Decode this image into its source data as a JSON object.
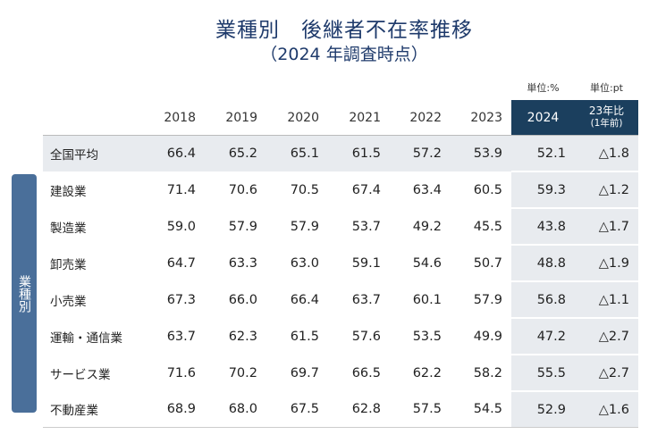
{
  "title": "業種別　後継者不在率推移",
  "subtitle": "（2024 年調査時点）",
  "units": {
    "pct": "単位:%",
    "pt": "単位:pt"
  },
  "side_label": "業種別",
  "columns": [
    "2018",
    "2019",
    "2020",
    "2021",
    "2022",
    "2023",
    "2024"
  ],
  "change_header": {
    "line1": "23年比",
    "line2": "(1年前)"
  },
  "rows": [
    {
      "label": "全国平均",
      "values": [
        "66.4",
        "65.2",
        "65.1",
        "61.5",
        "57.2",
        "53.9",
        "52.1"
      ],
      "change": "△1.8"
    },
    {
      "label": "建設業",
      "values": [
        "71.4",
        "70.6",
        "70.5",
        "67.4",
        "63.4",
        "60.5",
        "59.3"
      ],
      "change": "△1.2"
    },
    {
      "label": "製造業",
      "values": [
        "59.0",
        "57.9",
        "57.9",
        "53.7",
        "49.2",
        "45.5",
        "43.8"
      ],
      "change": "△1.7"
    },
    {
      "label": "卸売業",
      "values": [
        "64.7",
        "63.3",
        "63.0",
        "59.1",
        "54.6",
        "50.7",
        "48.8"
      ],
      "change": "△1.9"
    },
    {
      "label": "小売業",
      "values": [
        "67.3",
        "66.0",
        "66.4",
        "63.7",
        "60.1",
        "57.9",
        "56.8"
      ],
      "change": "△1.1"
    },
    {
      "label": "運輸・通信業",
      "values": [
        "63.7",
        "62.3",
        "61.5",
        "57.6",
        "53.5",
        "49.9",
        "47.2"
      ],
      "change": "△2.7"
    },
    {
      "label": "サービス業",
      "values": [
        "71.6",
        "70.2",
        "69.7",
        "66.5",
        "62.2",
        "58.2",
        "55.5"
      ],
      "change": "△2.7"
    },
    {
      "label": "不動産業",
      "values": [
        "68.9",
        "68.0",
        "67.5",
        "62.8",
        "57.5",
        "54.5",
        "52.9"
      ],
      "change": "△1.6"
    }
  ]
}
